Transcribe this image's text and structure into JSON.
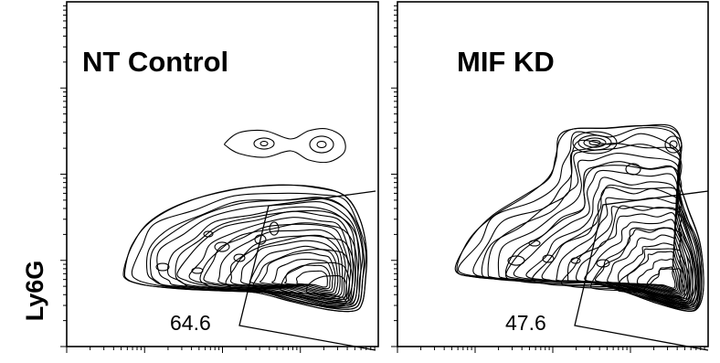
{
  "figure": {
    "y_axis_label": "Ly6G"
  },
  "chart_data": [
    {
      "type": "contour",
      "title": "NT Control",
      "xlabel": "",
      "ylabel": "Ly6G",
      "gate_percent": 64.6,
      "gate_label": "64.6",
      "x_scale": "log",
      "y_scale": "log",
      "tick_labels_shown": false
    },
    {
      "type": "contour",
      "title": "MIF KD",
      "xlabel": "",
      "ylabel": "",
      "gate_percent": 47.6,
      "gate_label": "47.6",
      "x_scale": "log",
      "y_scale": "log",
      "tick_labels_shown": false
    }
  ]
}
